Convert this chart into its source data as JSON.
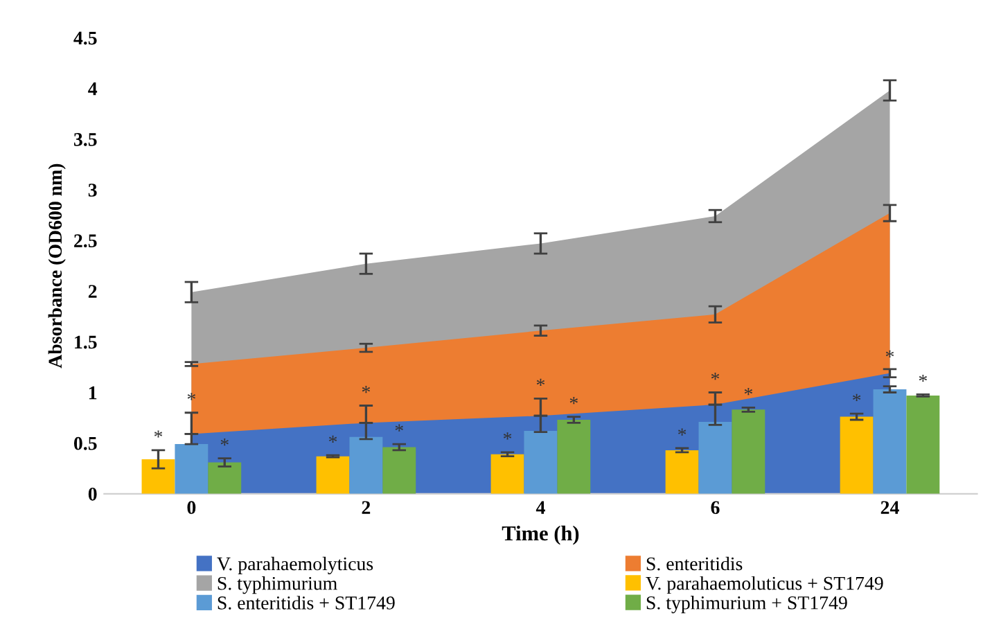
{
  "chart_data": {
    "type": "bar",
    "xlabel": "Time (h)",
    "ylabel": "Absorbance (OD600 nm)",
    "categories": [
      "0",
      "2",
      "4",
      "6",
      "24"
    ],
    "ylim": [
      0,
      4.5
    ],
    "yticks": [
      0,
      0.5,
      1,
      1.5,
      2,
      2.5,
      3,
      3.5,
      4,
      4.5
    ],
    "grid": false,
    "legend": "bottom",
    "series": [
      {
        "name": "V. parahaemolyticus",
        "type": "area",
        "color": "#4472c4",
        "values": [
          0.59,
          0.7,
          0.77,
          0.88,
          1.19
        ],
        "errors": [
          null,
          null,
          null,
          null,
          0.04
        ]
      },
      {
        "name": "S. enteritidis",
        "type": "area",
        "color": "#ed7d31",
        "values": [
          1.28,
          1.44,
          1.61,
          1.77,
          2.77
        ],
        "errors": [
          0.02,
          0.04,
          0.05,
          0.08,
          0.08
        ]
      },
      {
        "name": "S. typhimurium",
        "type": "area",
        "color": "#a5a5a5",
        "values": [
          1.99,
          2.27,
          2.47,
          2.74,
          3.98
        ],
        "errors": [
          0.1,
          0.1,
          0.1,
          0.06,
          0.1
        ]
      },
      {
        "name": "V. parahaemoluticus + ST1749",
        "color": "#ffc000",
        "values": [
          0.34,
          0.37,
          0.39,
          0.43,
          0.76
        ],
        "errors": [
          0.09,
          0.01,
          0.02,
          0.02,
          0.03
        ],
        "value_labels": [
          "*",
          "*",
          "*",
          "*",
          "*"
        ]
      },
      {
        "name": "S. enteritidis + ST1749",
        "color": "#5b9bd5",
        "values": [
          0.49,
          0.56,
          0.62,
          0.71,
          1.03
        ],
        "errors": [
          [
            0.49,
            0.8
          ],
          [
            0.54,
            0.87
          ],
          [
            0.61,
            0.94
          ],
          [
            0.68,
            1.0
          ],
          0.03
        ],
        "value_labels": [
          "*",
          "*",
          "*",
          "*",
          "*"
        ]
      },
      {
        "name": "S. typhimurium + ST1749",
        "color": "#70ad47",
        "values": [
          0.31,
          0.46,
          0.73,
          0.83,
          0.97
        ],
        "errors": [
          0.04,
          0.03,
          0.03,
          0.02,
          0.01
        ],
        "value_labels": [
          "*",
          "*",
          "*",
          "*",
          "*"
        ]
      }
    ]
  }
}
